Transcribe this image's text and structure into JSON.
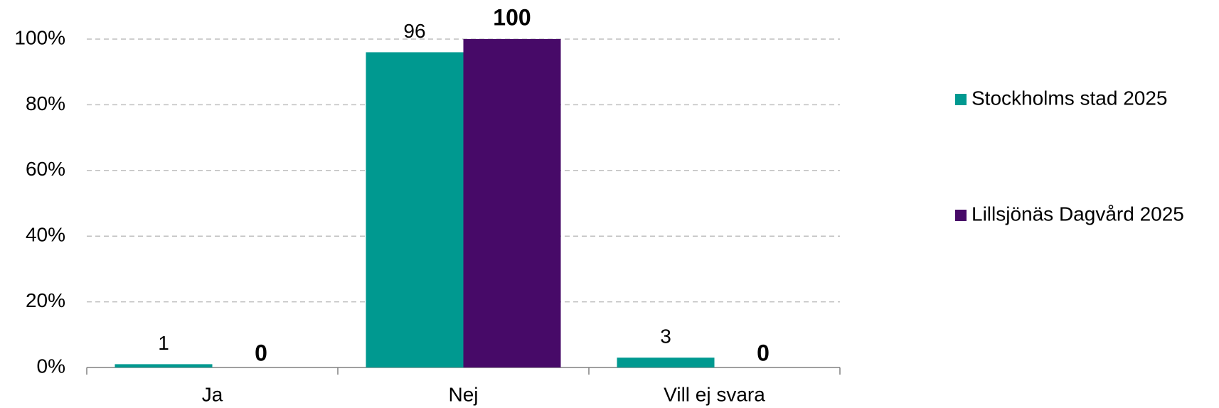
{
  "chart_data": {
    "type": "bar",
    "categories": [
      "Ja",
      "Nej",
      "Vill ej svara"
    ],
    "series": [
      {
        "name": "Stockholms stad 2025",
        "color": "#009990",
        "values": [
          1,
          96,
          3
        ]
      },
      {
        "name": "Lillsjönäs Dagvård 2025",
        "color": "#470A68",
        "values": [
          0,
          100,
          0
        ]
      }
    ],
    "ylim": [
      0,
      100
    ],
    "yticks": [
      {
        "value": 0,
        "label": "0%"
      },
      {
        "value": 20,
        "label": "20%"
      },
      {
        "value": 40,
        "label": "40%"
      },
      {
        "value": 60,
        "label": "60%"
      },
      {
        "value": 80,
        "label": "80%"
      },
      {
        "value": 100,
        "label": "100%"
      }
    ],
    "grid": true,
    "legend": "right"
  }
}
